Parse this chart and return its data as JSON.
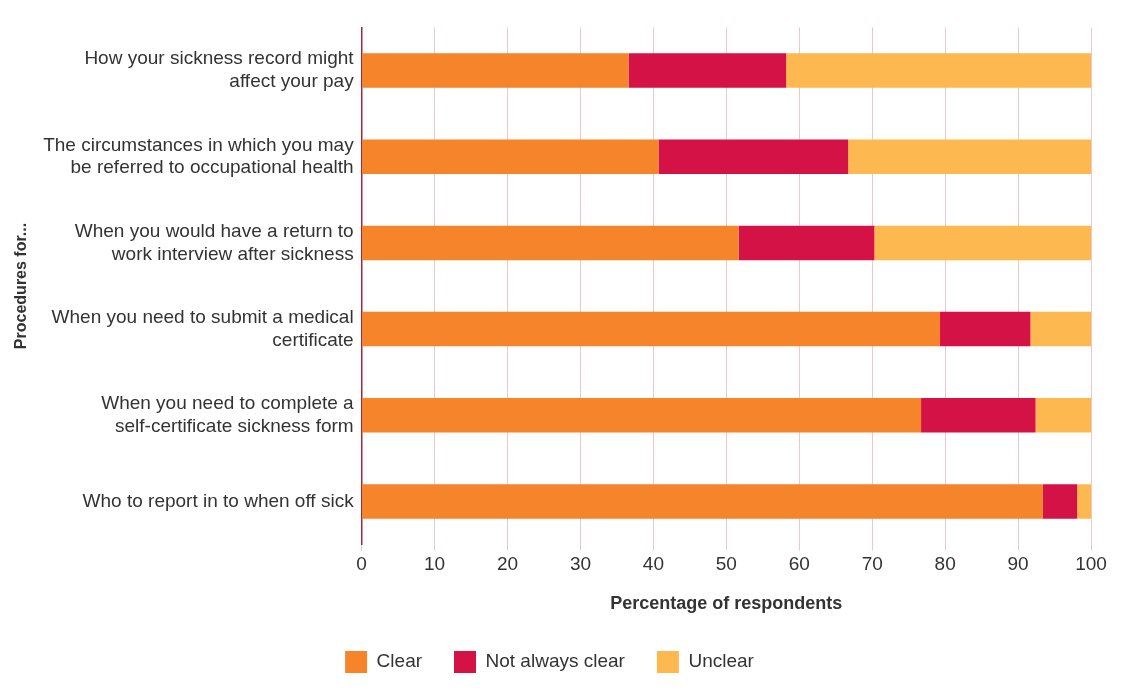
{
  "chart_data": {
    "type": "bar",
    "orientation": "horizontal",
    "stacked": true,
    "categories": [
      "How your sickness record might affect your pay",
      "The circumstances in which you may be referred to occupational health",
      "When you would have a return to work interview after sickness",
      "When you need to submit a medical certificate",
      "When you need to complete a self-certificate sickness form",
      "Who to report in to when off sick"
    ],
    "series": [
      {
        "name": "Clear",
        "color": "#f5842a",
        "values": [
          36.6,
          40.7,
          51.7,
          79.3,
          76.7,
          93.4
        ]
      },
      {
        "name": "Not always clear",
        "color": "#d51245",
        "values": [
          21.6,
          26.0,
          18.6,
          12.4,
          15.7,
          4.7
        ]
      },
      {
        "name": "Unclear",
        "color": "#fdb94f",
        "values": [
          41.8,
          33.3,
          29.7,
          8.3,
          7.6,
          1.9
        ]
      }
    ],
    "xlim": [
      0,
      100
    ],
    "xticks": [
      0,
      10,
      20,
      30,
      40,
      50,
      60,
      70,
      80,
      90,
      100
    ],
    "xlabel": "Percentage of respondents",
    "ylabel": "Procedures for...",
    "grid": "x",
    "legend": "bottom"
  }
}
